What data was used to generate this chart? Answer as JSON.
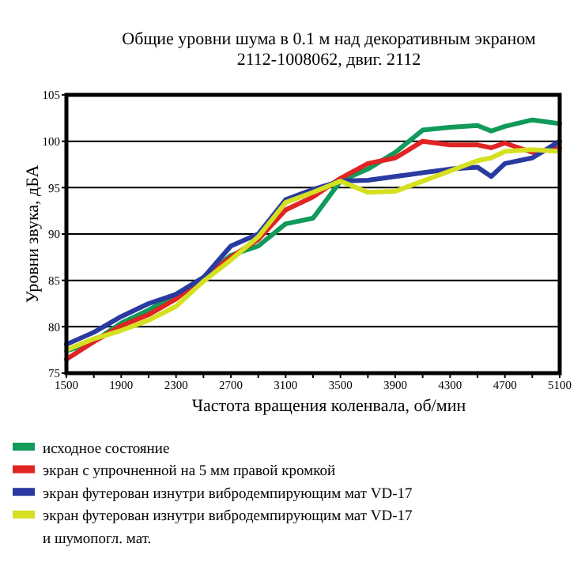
{
  "chart_data": {
    "type": "line",
    "title": "Общие уровни шума в 0.1 м над декоративным экраном\n2112-1008062, двиг. 2112",
    "xlabel": "Частота вращения коленвала, об/мин",
    "ylabel": "Уровни звука, дБА",
    "x": [
      1500,
      1700,
      1900,
      2100,
      2300,
      2500,
      2700,
      2900,
      3100,
      3300,
      3500,
      3700,
      3900,
      4100,
      4300,
      4500,
      4600,
      4700,
      4900,
      5100
    ],
    "series": [
      {
        "name": "исходное состояние",
        "color": "#119a5a",
        "values": [
          77.4,
          78.4,
          80.4,
          81.8,
          83.5,
          85.3,
          87.7,
          88.7,
          91.1,
          91.7,
          95.7,
          97.0,
          98.8,
          101.2,
          101.5,
          101.7,
          101.1,
          101.6,
          102.3,
          101.9
        ]
      },
      {
        "name": "экран с упрочненной на 5 мм правой кромкой",
        "color": "#e02424",
        "values": [
          76.5,
          78.4,
          80.1,
          81.3,
          83.0,
          85.3,
          87.5,
          89.4,
          92.6,
          94.0,
          96.0,
          97.6,
          98.2,
          100.0,
          99.6,
          99.6,
          99.3,
          99.8,
          98.8,
          99.3
        ]
      },
      {
        "name": "экран футерован изнутри вибродемпирующим мат VD-17",
        "color": "#2a3aa0",
        "values": [
          78.1,
          79.4,
          81.1,
          82.5,
          83.5,
          85.3,
          88.7,
          90.0,
          93.7,
          94.8,
          95.7,
          95.8,
          96.2,
          96.6,
          97.0,
          97.2,
          96.2,
          97.6,
          98.2,
          100.0
        ]
      },
      {
        "name": "экран футерован изнутри вибродемпирующим мат VD-17\nи шумопогл. мат.",
        "color": "#d4e020",
        "values": [
          77.5,
          78.7,
          79.6,
          80.7,
          82.2,
          84.9,
          87.2,
          89.7,
          93.4,
          94.5,
          95.7,
          94.5,
          94.6,
          95.7,
          96.8,
          97.9,
          98.2,
          98.9,
          99.1,
          98.9
        ]
      }
    ],
    "xlim": [
      1500,
      5100
    ],
    "ylim": [
      75,
      105
    ],
    "xticks": [
      1500,
      {
        "value": 1700,
        "label": null
      },
      1900,
      {
        "value": 2100,
        "label": null
      },
      2300,
      {
        "value": 2500,
        "label": null
      },
      2700,
      {
        "value": 2900,
        "label": null
      },
      3100,
      {
        "value": 3300,
        "label": null
      },
      3500,
      {
        "value": 3700,
        "label": null
      },
      3900,
      {
        "value": 4100,
        "label": null
      },
      4300,
      {
        "value": 4500,
        "label": null
      },
      4700,
      {
        "value": 4900,
        "label": null
      },
      5100
    ],
    "yticks": [
      75,
      80,
      85,
      90,
      95,
      100,
      105
    ],
    "grid": "y",
    "legend": "bottom",
    "line_style": "solid",
    "marker": "none"
  }
}
